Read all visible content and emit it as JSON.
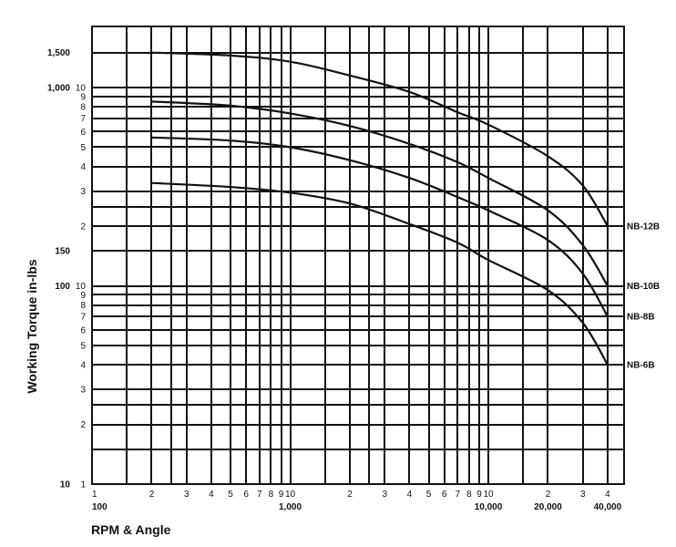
{
  "chart_data": {
    "type": "line",
    "title": "",
    "xlabel": "RPM & Angle",
    "ylabel": "Working Torque in-lbs",
    "xscale": "log",
    "yscale": "log",
    "xlim": [
      100,
      40000
    ],
    "ylim": [
      10,
      2000
    ],
    "grid": true,
    "legend_position": "right, inline at curve ends",
    "x_decade_labels": [
      "100",
      "1,000",
      "10,000",
      "20,000",
      "40,000"
    ],
    "x_minor_tick_labels": [
      "1",
      "2",
      "3",
      "4",
      "5",
      "6",
      "7",
      "8",
      "9",
      "10",
      "2",
      "3",
      "4",
      "5",
      "6",
      "7",
      "8",
      "9",
      "10",
      "2",
      "3",
      "4"
    ],
    "y_outer_labels": [
      "1,500",
      "1,000",
      "150",
      "100",
      "10"
    ],
    "y_inner_tick_labels": [
      "10",
      "9",
      "8",
      "7",
      "6",
      "5",
      "4",
      "3",
      "2",
      "10",
      "9",
      "8",
      "7",
      "6",
      "5",
      "4",
      "3",
      "2",
      "1"
    ],
    "series": [
      {
        "name": "NB-12B",
        "x": [
          200,
          500,
          1000,
          2000,
          4000,
          7000,
          10000,
          20000,
          30000,
          40000
        ],
        "values": [
          1500,
          1450,
          1350,
          1150,
          950,
          750,
          650,
          450,
          320,
          200
        ]
      },
      {
        "name": "NB-10B",
        "x": [
          200,
          500,
          1000,
          2000,
          4000,
          7000,
          10000,
          20000,
          30000,
          40000
        ],
        "values": [
          850,
          810,
          740,
          640,
          520,
          420,
          350,
          240,
          160,
          100
        ]
      },
      {
        "name": "NB-8B",
        "x": [
          200,
          500,
          1000,
          2000,
          4000,
          7000,
          10000,
          20000,
          30000,
          40000
        ],
        "values": [
          560,
          540,
          500,
          430,
          350,
          280,
          240,
          170,
          115,
          70
        ]
      },
      {
        "name": "NB-6B",
        "x": [
          200,
          500,
          1000,
          2000,
          4000,
          7000,
          10000,
          20000,
          30000,
          40000
        ],
        "values": [
          330,
          315,
          295,
          260,
          205,
          165,
          135,
          95,
          65,
          40
        ]
      }
    ]
  },
  "labels": {
    "ylabel": "Working Torque in-lbs",
    "xlabel": "RPM & Angle",
    "series_names": [
      "NB-12B",
      "NB-10B",
      "NB-8B",
      "NB-6B"
    ]
  }
}
